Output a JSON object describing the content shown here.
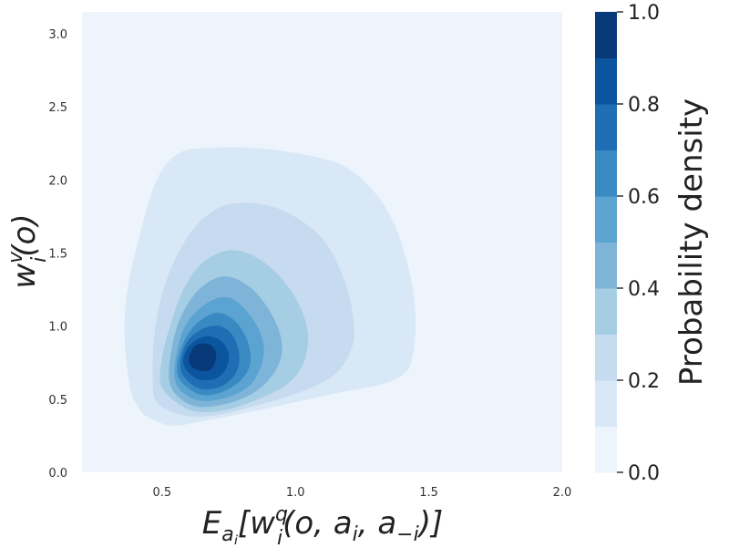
{
  "chart_data": {
    "type": "contour_density",
    "xlim": [
      0.2,
      2.0
    ],
    "ylim": [
      0.0,
      3.15
    ],
    "x_ticks": [
      0.5,
      1.0,
      1.5,
      2.0
    ],
    "y_ticks": [
      0.0,
      0.5,
      1.0,
      1.5,
      2.0,
      2.5,
      3.0
    ],
    "x_tick_labels": [
      "0.5",
      "1.0",
      "1.5",
      "2.0"
    ],
    "y_tick_labels": [
      "0.0",
      "0.5",
      "1.0",
      "1.5",
      "2.0",
      "2.5",
      "3.0"
    ],
    "xlabel": {
      "base": "E",
      "sub": "a",
      "subsub": "i",
      "bracket": "[w",
      "sup": "q",
      "sub2": "i",
      "args": "(o, a",
      "argsub": "i",
      "comma": ", a",
      "argsub2": "−i",
      "close": ")]"
    },
    "ylabel": {
      "base": "w",
      "sup": "v",
      "sub": "i",
      "args": "(o)"
    },
    "grid": false,
    "peak": {
      "x": 0.63,
      "y": 0.82
    },
    "colorbar": {
      "label": "Probability density",
      "min": 0.0,
      "max": 1.0,
      "ticks": [
        0.0,
        0.2,
        0.4,
        0.6,
        0.8,
        1.0
      ],
      "tick_labels": [
        "0.0",
        "0.2",
        "0.4",
        "0.6",
        "0.8",
        "1.0"
      ],
      "levels": [
        0.0,
        0.1,
        0.2,
        0.3,
        0.4,
        0.5,
        0.6,
        0.7,
        0.8,
        0.9,
        1.0
      ],
      "colors": [
        "#edf4fc",
        "#d9e8f6",
        "#c6dbef",
        "#a5cde3",
        "#7fb4d9",
        "#5ba3d0",
        "#3989c2",
        "#1f6eb3",
        "#0b559f",
        "#083a7a"
      ]
    },
    "contours": [
      {
        "level": 0.1,
        "pts": [
          [
            0.445,
            0.38
          ],
          [
            0.54,
            0.32
          ],
          [
            0.68,
            0.36
          ],
          [
            0.9,
            0.44
          ],
          [
            1.15,
            0.54
          ],
          [
            1.32,
            0.6
          ],
          [
            1.41,
            0.68
          ],
          [
            1.44,
            0.8
          ],
          [
            1.45,
            1.05
          ],
          [
            1.43,
            1.35
          ],
          [
            1.37,
            1.7
          ],
          [
            1.28,
            1.95
          ],
          [
            1.15,
            2.12
          ],
          [
            0.9,
            2.21
          ],
          [
            0.68,
            2.22
          ],
          [
            0.56,
            2.18
          ],
          [
            0.48,
            2.0
          ],
          [
            0.42,
            1.65
          ],
          [
            0.37,
            1.25
          ],
          [
            0.36,
            0.92
          ],
          [
            0.38,
            0.58
          ],
          [
            0.41,
            0.45
          ]
        ]
      },
      {
        "level": 0.2,
        "pts": [
          [
            0.48,
            0.48
          ],
          [
            0.58,
            0.39
          ],
          [
            0.7,
            0.39
          ],
          [
            0.86,
            0.46
          ],
          [
            1.02,
            0.55
          ],
          [
            1.14,
            0.66
          ],
          [
            1.2,
            0.8
          ],
          [
            1.22,
            0.98
          ],
          [
            1.19,
            1.28
          ],
          [
            1.1,
            1.6
          ],
          [
            0.94,
            1.8
          ],
          [
            0.77,
            1.84
          ],
          [
            0.65,
            1.73
          ],
          [
            0.56,
            1.5
          ],
          [
            0.5,
            1.22
          ],
          [
            0.47,
            0.92
          ],
          [
            0.465,
            0.65
          ]
        ]
      },
      {
        "level": 0.3,
        "pts": [
          [
            0.5,
            0.58
          ],
          [
            0.6,
            0.43
          ],
          [
            0.72,
            0.42
          ],
          [
            0.86,
            0.5
          ],
          [
            0.98,
            0.62
          ],
          [
            1.04,
            0.8
          ],
          [
            1.04,
            1.02
          ],
          [
            0.98,
            1.25
          ],
          [
            0.88,
            1.44
          ],
          [
            0.76,
            1.52
          ],
          [
            0.65,
            1.43
          ],
          [
            0.58,
            1.25
          ],
          [
            0.53,
            1.0
          ],
          [
            0.5,
            0.78
          ]
        ]
      },
      {
        "level": 0.4,
        "pts": [
          [
            0.53,
            0.6
          ],
          [
            0.61,
            0.46
          ],
          [
            0.72,
            0.46
          ],
          [
            0.84,
            0.54
          ],
          [
            0.92,
            0.68
          ],
          [
            0.95,
            0.85
          ],
          [
            0.92,
            1.05
          ],
          [
            0.84,
            1.25
          ],
          [
            0.74,
            1.34
          ],
          [
            0.65,
            1.27
          ],
          [
            0.58,
            1.1
          ],
          [
            0.54,
            0.88
          ]
        ]
      },
      {
        "level": 0.5,
        "pts": [
          [
            0.55,
            0.62
          ],
          [
            0.62,
            0.5
          ],
          [
            0.72,
            0.5
          ],
          [
            0.82,
            0.58
          ],
          [
            0.87,
            0.72
          ],
          [
            0.88,
            0.88
          ],
          [
            0.84,
            1.05
          ],
          [
            0.76,
            1.19
          ],
          [
            0.68,
            1.17
          ],
          [
            0.6,
            1.04
          ],
          [
            0.56,
            0.86
          ]
        ]
      },
      {
        "level": 0.6,
        "pts": [
          [
            0.56,
            0.66
          ],
          [
            0.63,
            0.54
          ],
          [
            0.71,
            0.54
          ],
          [
            0.79,
            0.62
          ],
          [
            0.83,
            0.74
          ],
          [
            0.82,
            0.9
          ],
          [
            0.77,
            1.04
          ],
          [
            0.7,
            1.09
          ],
          [
            0.62,
            1.0
          ],
          [
            0.57,
            0.84
          ]
        ]
      },
      {
        "level": 0.7,
        "pts": [
          [
            0.57,
            0.7
          ],
          [
            0.63,
            0.58
          ],
          [
            0.71,
            0.58
          ],
          [
            0.77,
            0.66
          ],
          [
            0.79,
            0.78
          ],
          [
            0.77,
            0.92
          ],
          [
            0.72,
            1.0
          ],
          [
            0.65,
            0.98
          ],
          [
            0.59,
            0.88
          ]
        ]
      },
      {
        "level": 0.8,
        "pts": [
          [
            0.58,
            0.74
          ],
          [
            0.63,
            0.64
          ],
          [
            0.7,
            0.64
          ],
          [
            0.74,
            0.71
          ],
          [
            0.75,
            0.81
          ],
          [
            0.72,
            0.9
          ],
          [
            0.66,
            0.93
          ],
          [
            0.6,
            0.86
          ]
        ]
      },
      {
        "level": 0.9,
        "pts": [
          [
            0.6,
            0.76
          ],
          [
            0.63,
            0.7
          ],
          [
            0.68,
            0.7
          ],
          [
            0.7,
            0.76
          ],
          [
            0.7,
            0.83
          ],
          [
            0.67,
            0.88
          ],
          [
            0.62,
            0.86
          ]
        ]
      },
      {
        "level": 1.0,
        "pts": [
          [
            0.625,
            0.78
          ],
          [
            0.645,
            0.74
          ],
          [
            0.665,
            0.76
          ],
          [
            0.665,
            0.82
          ],
          [
            0.65,
            0.85
          ],
          [
            0.63,
            0.83
          ]
        ]
      }
    ]
  }
}
